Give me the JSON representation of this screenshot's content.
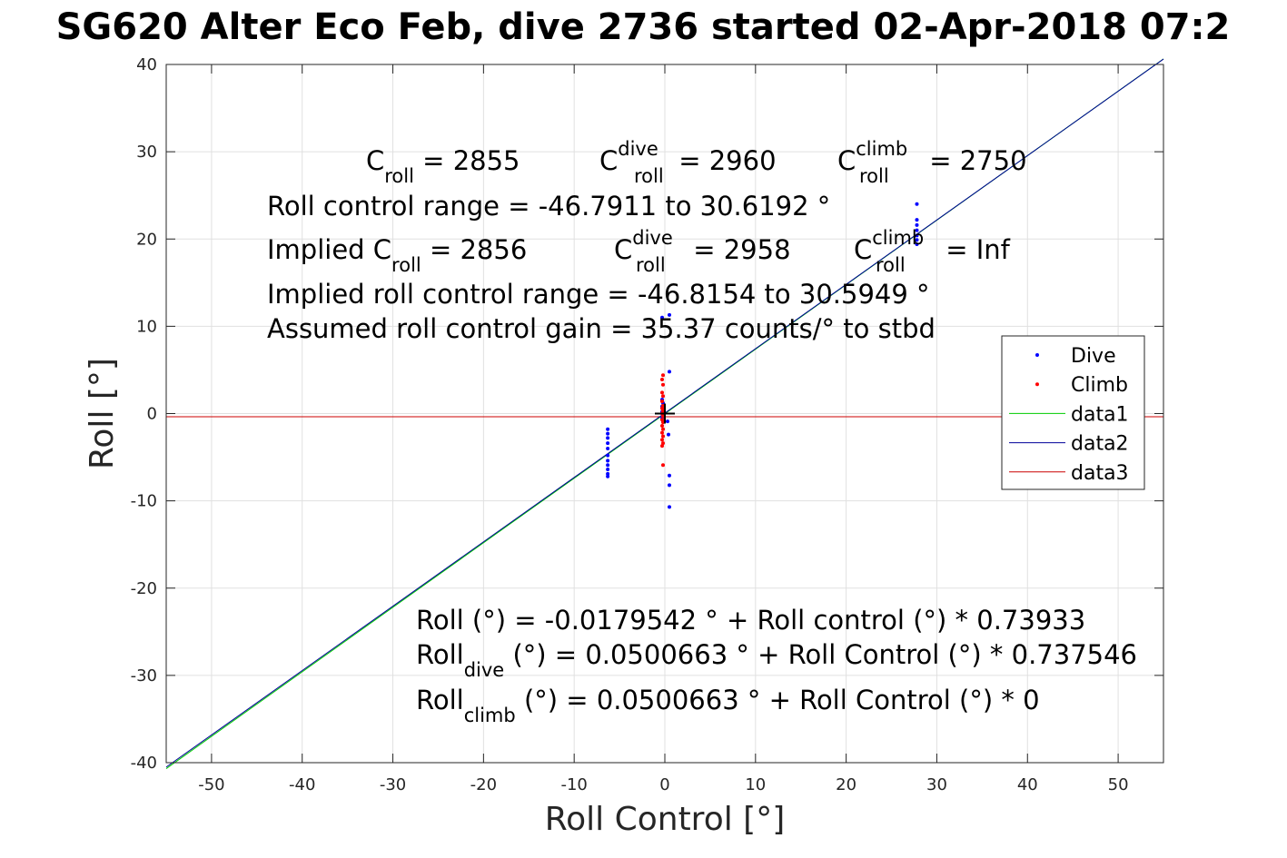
{
  "title": "SG620 Alter Eco Feb, dive 2736 started 02-Apr-2018 07:2",
  "chart_data": {
    "type": "scatter",
    "xlabel": "Roll Control [°]",
    "ylabel": "Roll [°]",
    "xlim": [
      -55,
      55
    ],
    "ylim": [
      -40,
      40
    ],
    "xticks": [
      -50,
      -40,
      -30,
      -20,
      -10,
      0,
      10,
      20,
      30,
      40,
      50
    ],
    "yticks": [
      -40,
      -30,
      -20,
      -10,
      0,
      10,
      20,
      30,
      40
    ],
    "grid": true,
    "legend_position": "right-middle",
    "legend": [
      "Dive",
      "Climb",
      "data1",
      "data2",
      "data3"
    ],
    "colors": {
      "dive": "#0000ff",
      "climb": "#ff0000",
      "data1": "#00cc00",
      "data2": "#000099",
      "data3": "#cc0000"
    },
    "series": [
      {
        "name": "Dive",
        "marker": "dot",
        "points": [
          [
            -6.3,
            -1.8
          ],
          [
            -6.3,
            -2.3
          ],
          [
            -6.3,
            -2.8
          ],
          [
            -6.3,
            -3.4
          ],
          [
            -6.3,
            -4.0
          ],
          [
            -6.3,
            -4.8
          ],
          [
            -6.3,
            -5.4
          ],
          [
            -6.3,
            -5.9
          ],
          [
            -6.3,
            -6.4
          ],
          [
            -6.3,
            -6.9
          ],
          [
            -6.3,
            -7.2
          ],
          [
            -0.3,
            11.0
          ],
          [
            0.5,
            11.3
          ],
          [
            0.5,
            4.8
          ],
          [
            -0.3,
            1.6
          ],
          [
            -0.2,
            1.2
          ],
          [
            -0.3,
            0.8
          ],
          [
            -0.2,
            0.5
          ],
          [
            -0.3,
            0.2
          ],
          [
            -0.2,
            -0.2
          ],
          [
            -0.3,
            -0.5
          ],
          [
            -0.2,
            -0.9
          ],
          [
            0.3,
            -0.9
          ],
          [
            0.4,
            -2.4
          ],
          [
            0.5,
            -7.1
          ],
          [
            0.5,
            -8.2
          ],
          [
            0.5,
            -10.7
          ],
          [
            27.8,
            24.0
          ],
          [
            27.8,
            22.2
          ],
          [
            27.8,
            21.6
          ],
          [
            27.8,
            21.0
          ],
          [
            27.8,
            20.4
          ],
          [
            27.8,
            19.9
          ],
          [
            27.8,
            19.4
          ]
        ]
      },
      {
        "name": "Climb",
        "marker": "dot",
        "points": [
          [
            -0.2,
            4.4
          ],
          [
            -0.3,
            3.9
          ],
          [
            -0.2,
            3.3
          ],
          [
            -0.3,
            2.4
          ],
          [
            -0.2,
            2.0
          ],
          [
            -0.3,
            1.4
          ],
          [
            -0.2,
            0.9
          ],
          [
            -0.3,
            0.6
          ],
          [
            -0.2,
            0.3
          ],
          [
            -0.3,
            0.0
          ],
          [
            -0.2,
            -0.3
          ],
          [
            -0.3,
            -0.7
          ],
          [
            -0.2,
            -1.0
          ],
          [
            -0.3,
            -1.4
          ],
          [
            -0.2,
            -1.8
          ],
          [
            -0.3,
            -2.2
          ],
          [
            -0.2,
            -2.6
          ],
          [
            -0.3,
            -3.0
          ],
          [
            -0.2,
            -3.4
          ],
          [
            -0.3,
            -3.7
          ],
          [
            -0.2,
            -5.9
          ]
        ]
      },
      {
        "name": "data1",
        "line": true,
        "x": [
          -55,
          55
        ],
        "y": [
          -40.68,
          40.64
        ]
      },
      {
        "name": "data2",
        "line": true,
        "x": [
          -55,
          55
        ],
        "y": [
          -40.51,
          40.62
        ]
      },
      {
        "name": "data3",
        "line": true,
        "x": [
          -55,
          55
        ],
        "y": [
          -0.36,
          -0.36
        ]
      }
    ],
    "origin_marker": {
      "x": 0,
      "y": 0,
      "symbol": "+"
    },
    "annotations": {
      "c_roll": {
        "base": "C",
        "sub": "roll",
        "value": " = 2855"
      },
      "c_roll_dive": {
        "base": "C",
        "sup": "dive",
        "sub": "roll",
        "value": " = 2960"
      },
      "c_roll_climb": {
        "base": "C",
        "sup": "climb",
        "sub": "roll",
        "value": " = 2750"
      },
      "range": "Roll control range = -46.7911 to 30.6192 °",
      "implied_prefix": "Implied ",
      "implied_c_roll": {
        "base": "C",
        "sub": "roll",
        "value": " = 2856"
      },
      "implied_c_roll_dive": {
        "base": "C",
        "sup": "dive",
        "sub": "roll",
        "value": " = 2958"
      },
      "implied_c_roll_climb": {
        "base": "C",
        "sup": "climb",
        "sub": "roll",
        "value": " =  Inf"
      },
      "implied_range": "Implied roll control range = -46.8154 to 30.5949 °",
      "gain": "Assumed roll control gain = 35.37 counts/° to stbd",
      "fit_all": "Roll (°) = -0.0179542 ° + Roll control (°) * 0.73933",
      "fit_dive": {
        "base": "Roll",
        "sub": "dive",
        "rest": " (°) = 0.0500663 ° + Roll Control (°) * 0.737546"
      },
      "fit_climb": {
        "base": "Roll",
        "sub": "climb",
        "rest": " (°) = 0.0500663 ° + Roll Control (°) * 0"
      }
    }
  }
}
